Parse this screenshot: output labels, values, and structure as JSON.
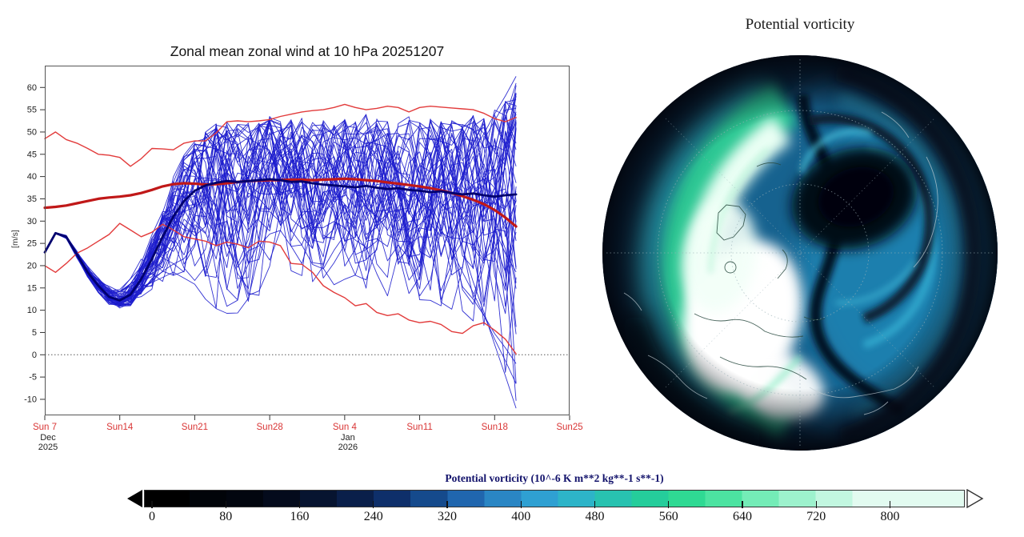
{
  "left_chart": {
    "title": "Zonal mean zonal wind at 10 hPa 20251207",
    "y_axis": {
      "label": "[m/s]",
      "ticks": [
        60,
        55,
        50,
        45,
        40,
        35,
        30,
        25,
        20,
        15,
        10,
        5,
        0,
        -5,
        -10
      ]
    },
    "x_axis": {
      "tick_labels": [
        "Sun 7",
        "Sun14",
        "Sun21",
        "Sun28",
        "Sun 4",
        "Sun11",
        "Sun18",
        "Sun25"
      ],
      "tick_interval_days": 7,
      "label_color": "#d93636",
      "sub_labels": [
        {
          "day": 0,
          "lines": [
            "Dec",
            "2025"
          ]
        },
        {
          "day": 28,
          "lines": [
            "Jan",
            "2026"
          ]
        }
      ]
    },
    "chart_data": {
      "type": "line",
      "title": "Zonal mean zonal wind at 10 hPa 20251207",
      "ylabel": "[m/s]",
      "ylim": [
        -13.6,
        64.9
      ],
      "xlim_days": [
        0,
        49
      ],
      "x_unit": "days since 2025-12-07, one value per day",
      "zero_line": true,
      "series": [
        {
          "name": "climatology_upper",
          "color": "#e23b3b",
          "width": 1.4,
          "values": [
            48.5,
            50.0,
            48.3,
            47.5,
            46.3,
            45.0,
            44.8,
            44.3,
            42.3,
            44.0,
            46.3,
            46.2,
            46.0,
            47.5,
            48.0,
            48.0,
            49.8,
            52.3,
            52.5,
            52.3,
            52.5,
            52.8,
            53.5,
            54.0,
            54.5,
            54.8,
            55.0,
            55.5,
            56.2,
            55.5,
            55.0,
            55.3,
            55.8,
            55.5,
            54.5,
            55.5,
            55.8,
            55.6,
            55.4,
            55.2,
            55.0,
            54.2,
            53.0,
            52.3,
            53.3
          ]
        },
        {
          "name": "climatology_lower",
          "color": "#e23b3b",
          "width": 1.4,
          "values": [
            20.0,
            18.5,
            20.5,
            22.8,
            24.0,
            25.5,
            27.0,
            29.5,
            28.0,
            26.5,
            27.5,
            29.3,
            28.0,
            26.5,
            26.0,
            25.5,
            24.5,
            25.3,
            24.8,
            24.0,
            25.5,
            25.3,
            24.5,
            20.5,
            20.3,
            18.5,
            15.5,
            14.0,
            12.8,
            11.0,
            11.5,
            9.5,
            8.8,
            9.2,
            7.8,
            7.2,
            7.5,
            6.8,
            5.2,
            4.8,
            6.5,
            7.2,
            5.5,
            3.5,
            0.2
          ]
        },
        {
          "name": "climatology_mean",
          "color": "#c01818",
          "width": 3.2,
          "values": [
            33.0,
            33.2,
            33.5,
            34.0,
            34.5,
            35.0,
            35.3,
            35.5,
            35.8,
            36.3,
            37.0,
            37.8,
            38.3,
            38.5,
            38.4,
            38.2,
            38.3,
            38.5,
            38.8,
            39.0,
            39.1,
            39.2,
            39.2,
            39.3,
            39.3,
            39.2,
            39.3,
            39.4,
            39.5,
            39.4,
            39.2,
            39.0,
            38.7,
            38.4,
            38.1,
            37.8,
            37.4,
            36.9,
            36.3,
            35.6,
            34.8,
            33.8,
            32.5,
            30.8,
            28.8
          ]
        },
        {
          "name": "ensemble_mean",
          "color": "#00006e",
          "width": 2.8,
          "values": [
            23.0,
            27.3,
            26.5,
            22.5,
            18.5,
            15.5,
            13.0,
            12.2,
            13.5,
            17.0,
            21.5,
            26.5,
            31.0,
            34.5,
            36.8,
            38.0,
            38.6,
            39.0,
            38.8,
            39.0,
            39.2,
            39.4,
            39.2,
            38.8,
            38.9,
            38.5,
            38.2,
            38.0,
            37.8,
            37.6,
            37.9,
            37.5,
            37.2,
            37.4,
            37.0,
            36.8,
            36.5,
            36.7,
            36.3,
            36.0,
            36.2,
            35.8,
            35.5,
            35.8,
            36.0
          ]
        }
      ],
      "ensemble": {
        "count": 50,
        "color": "#1c1ccd",
        "width": 0.9,
        "seed": 20251207,
        "min_envelope": [
          22.5,
          26.0,
          24.5,
          20.0,
          16.0,
          12.5,
          10.5,
          10.0,
          11.0,
          12.5,
          14.0,
          16.0,
          17.0,
          16.0,
          14.0,
          10.0,
          7.5,
          7.0,
          8.0,
          11.0,
          13.0,
          14.0,
          13.5,
          13.0,
          15.0,
          15.5,
          16.0,
          15.0,
          14.0,
          13.5,
          14.0,
          13.0,
          12.5,
          13.0,
          12.0,
          11.5,
          10.5,
          10.0,
          9.0,
          8.0,
          6.0,
          3.0,
          -1.0,
          -6.0,
          -12.0
        ],
        "max_envelope": [
          23.5,
          28.5,
          28.0,
          25.0,
          22.0,
          19.0,
          16.5,
          15.5,
          17.5,
          22.0,
          27.0,
          33.0,
          40.0,
          45.0,
          48.0,
          50.0,
          52.0,
          53.5,
          52.5,
          53.0,
          52.5,
          53.5,
          52.5,
          53.0,
          54.0,
          52.5,
          53.0,
          52.0,
          53.0,
          52.5,
          54.0,
          53.0,
          52.5,
          53.0,
          54.0,
          52.5,
          53.0,
          52.5,
          53.0,
          52.5,
          54.0,
          53.5,
          55.0,
          57.0,
          62.5
        ]
      }
    }
  },
  "map": {
    "title": "Potential vorticity",
    "chart_data": {
      "type": "heatmap",
      "projection": "north-polar-stereographic",
      "variable": "potential vorticity at 10 hPa",
      "units": "10^-6 K m**2 kg**-1 s**-1",
      "range": [
        0,
        800
      ],
      "features": [
        "bright white/green high-PV polar vortex lobe displaced toward left (Atlantic/Europe side) stretching from top-center to bottom-center",
        "dark low-PV anticyclone oval in upper-right with concentric cyan rings",
        "dark S-shaped channel separating vortex from mid-blue air mass on right",
        "dark near-zero PV around the outer circle edge",
        "dotted latitude circles and meridians, thin coastlines"
      ]
    }
  },
  "colorbar": {
    "title": "Potential vorticity (10^-6 K m**2 kg**-1 s**-1)",
    "ticks": [
      0,
      80,
      160,
      240,
      320,
      400,
      480,
      560,
      640,
      720,
      800
    ],
    "value_step_per_color": 40,
    "colors": [
      "#000000",
      "#010409",
      "#02060f",
      "#040b1c",
      "#071430",
      "#0a1f4a",
      "#0e2f6a",
      "#154a8c",
      "#2066ae",
      "#2a86c4",
      "#2fa0d2",
      "#2db4c8",
      "#28c2b0",
      "#25cd9b",
      "#2fd993",
      "#4ce3a1",
      "#74ecb7",
      "#9df2cd",
      "#c2f7e0",
      "#e2fbf0",
      "#ffffff"
    ],
    "left_arrow": "underflow-black",
    "right_arrow": "overflow-white-outline"
  }
}
